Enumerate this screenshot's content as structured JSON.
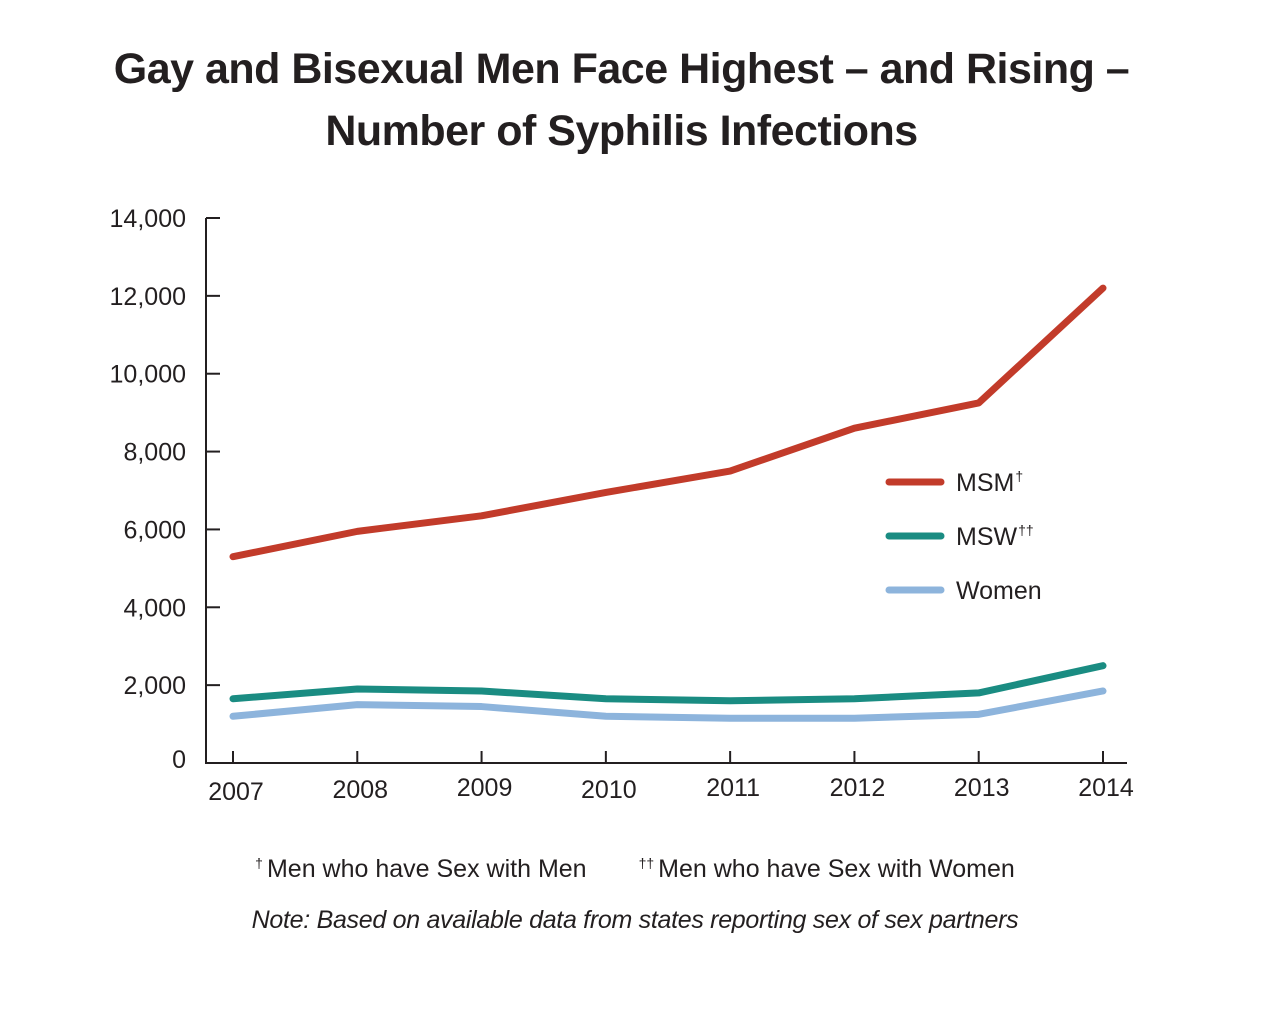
{
  "title_line1": "Gay and Bisexual Men Face Highest – and Rising –",
  "title_line2": "Number of Syphilis Infections",
  "chart_data": {
    "type": "line",
    "title": "Gay and Bisexual Men Face Highest – and Rising – Number of Syphilis Infections",
    "xlabel": "",
    "ylabel": "",
    "x": [
      "2007",
      "2008",
      "2009",
      "2010",
      "2011",
      "2012",
      "2013",
      "2014"
    ],
    "ylim": [
      0,
      14000
    ],
    "yticks": [
      0,
      2000,
      4000,
      6000,
      8000,
      10000,
      12000,
      14000
    ],
    "ytick_labels": [
      "0",
      "2,000",
      "4,000",
      "6,000",
      "8,000",
      "10,000",
      "12,000",
      "14,000"
    ],
    "grid": false,
    "legend_position": "right-middle",
    "series": [
      {
        "name": "MSM",
        "legend_label": "MSM",
        "marker": "†",
        "color": "#c23b2a",
        "values": [
          5300,
          5950,
          6350,
          6950,
          7500,
          8600,
          9250,
          12200
        ]
      },
      {
        "name": "MSW",
        "legend_label": "MSW",
        "marker": "††",
        "color": "#1a8c82",
        "values": [
          1650,
          1900,
          1850,
          1650,
          1600,
          1650,
          1800,
          2500
        ]
      },
      {
        "name": "Women",
        "legend_label": "Women",
        "marker": "",
        "color": "#8db4dc",
        "values": [
          1200,
          1500,
          1450,
          1200,
          1150,
          1150,
          1250,
          1850
        ]
      }
    ]
  },
  "footnotes": {
    "msm_marker": "†",
    "msm_text": "Men who have Sex with Men",
    "msw_marker": "††",
    "msw_text": "Men who have Sex with Women",
    "note": "Note: Based on available data from states reporting sex of sex partners"
  }
}
